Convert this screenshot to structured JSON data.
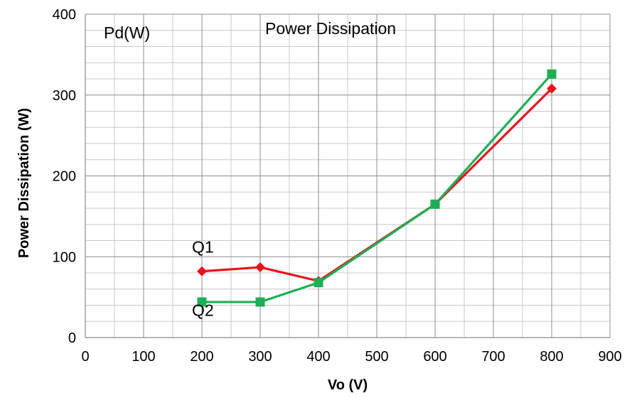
{
  "chart_data": {
    "type": "line",
    "title": "Power Dissipation",
    "corner_label": "Pd(W)",
    "xlabel": "Vo (V)",
    "ylabel": "Power Dissipation (W)",
    "xlim": [
      0,
      900
    ],
    "ylim": [
      0,
      400
    ],
    "x_ticks": [
      0,
      100,
      200,
      300,
      400,
      500,
      600,
      700,
      800,
      900
    ],
    "y_ticks": [
      0,
      100,
      200,
      300,
      400
    ],
    "x_minor_step": 50,
    "y_minor_step": 20,
    "grid": true,
    "series": [
      {
        "name": "Q1",
        "color": "#e8141c",
        "marker": "diamond",
        "x": [
          200,
          300,
          400,
          600,
          800
        ],
        "y": [
          82,
          87,
          70,
          165,
          308
        ]
      },
      {
        "name": "Q2",
        "color": "#1fae55",
        "marker": "square",
        "x": [
          200,
          300,
          400,
          600,
          800
        ],
        "y": [
          44,
          44,
          68,
          165,
          326
        ]
      }
    ],
    "series_labels": [
      {
        "series": "Q1",
        "text": "Q1",
        "at_x": 200,
        "at_y": 100
      },
      {
        "series": "Q2",
        "text": "Q2",
        "at_x": 200,
        "at_y": 20
      }
    ]
  }
}
